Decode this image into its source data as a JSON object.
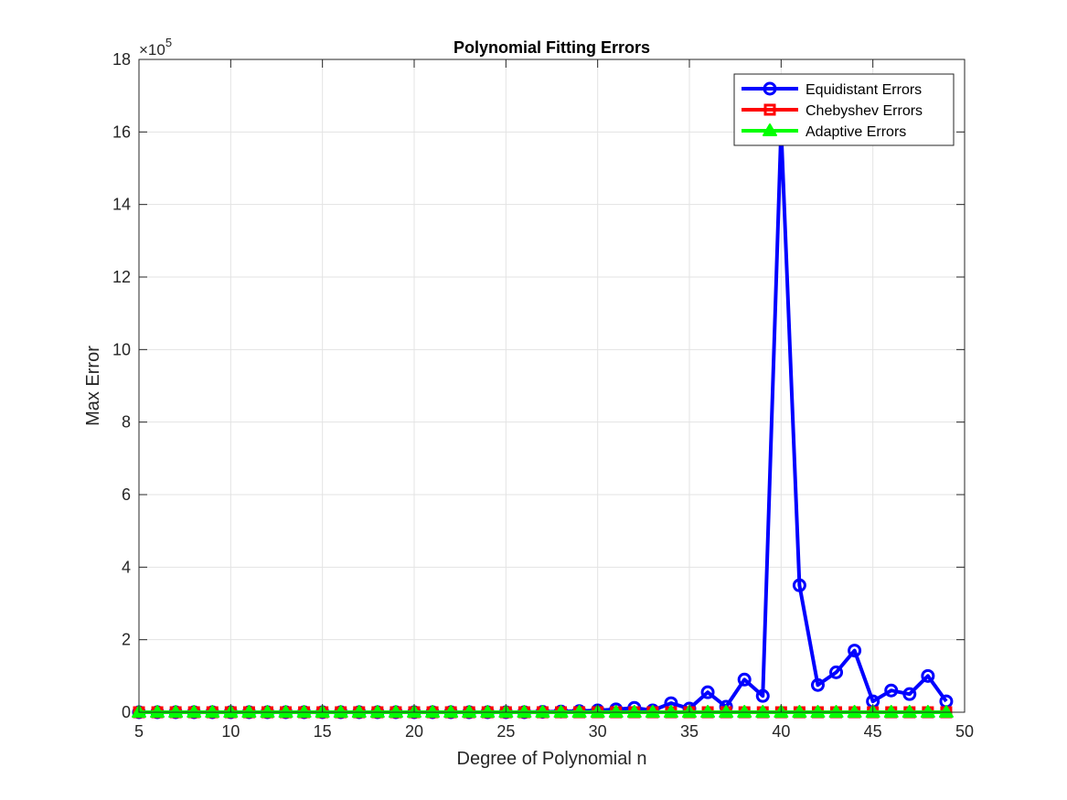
{
  "chart_data": {
    "type": "line",
    "title": "Polynomial Fitting Errors",
    "xlabel": "Degree of Polynomial n",
    "ylabel": "Max Error",
    "y_exponent_base": "×10",
    "y_exponent_power": "5",
    "xlim": [
      5,
      50
    ],
    "ylim": [
      0,
      18
    ],
    "y_scale": "×1e5",
    "xticks": [
      5,
      10,
      15,
      20,
      25,
      30,
      35,
      40,
      45,
      50
    ],
    "yticks": [
      0,
      2,
      4,
      6,
      8,
      10,
      12,
      14,
      16,
      18
    ],
    "grid": true,
    "legend_position": "top-right",
    "x": [
      5,
      6,
      7,
      8,
      9,
      10,
      11,
      12,
      13,
      14,
      15,
      16,
      17,
      18,
      19,
      20,
      21,
      22,
      23,
      24,
      25,
      26,
      27,
      28,
      29,
      30,
      31,
      32,
      33,
      34,
      35,
      36,
      37,
      38,
      39,
      40,
      41,
      42,
      43,
      44,
      45,
      46,
      47,
      48,
      49
    ],
    "series": [
      {
        "name": "Equidistant Errors",
        "color": "#0000ff",
        "marker": "circle",
        "values": [
          0,
          0,
          0,
          0,
          0,
          0,
          0,
          0,
          0,
          0,
          0,
          0,
          0,
          0,
          0,
          0,
          0,
          0,
          0,
          0,
          0,
          0,
          0.01,
          0.02,
          0.03,
          0.05,
          0.08,
          0.12,
          0.05,
          0.25,
          0.1,
          0.55,
          0.15,
          0.9,
          0.45,
          16.1,
          3.5,
          0.75,
          1.1,
          1.7,
          0.3,
          0.6,
          0.5,
          1.0,
          0.3
        ]
      },
      {
        "name": "Chebyshev Errors",
        "color": "#ff0000",
        "marker": "square",
        "values": [
          0,
          0,
          0,
          0,
          0,
          0,
          0,
          0,
          0,
          0,
          0,
          0,
          0,
          0,
          0,
          0,
          0,
          0,
          0,
          0,
          0,
          0,
          0,
          0,
          0,
          0,
          0,
          0,
          0,
          0,
          0,
          0,
          0,
          0,
          0,
          0,
          0,
          0,
          0,
          0,
          0,
          0,
          0,
          0,
          0
        ]
      },
      {
        "name": "Adaptive Errors",
        "color": "#00ff00",
        "marker": "triangle",
        "values": [
          0,
          0,
          0,
          0,
          0,
          0,
          0,
          0,
          0,
          0,
          0,
          0,
          0,
          0,
          0,
          0,
          0,
          0,
          0,
          0,
          0,
          0,
          0,
          0,
          0,
          0,
          0,
          0,
          0,
          0,
          0,
          0,
          0,
          0,
          0,
          0,
          0,
          0,
          0,
          0,
          0,
          0,
          0,
          0,
          0
        ]
      }
    ]
  }
}
